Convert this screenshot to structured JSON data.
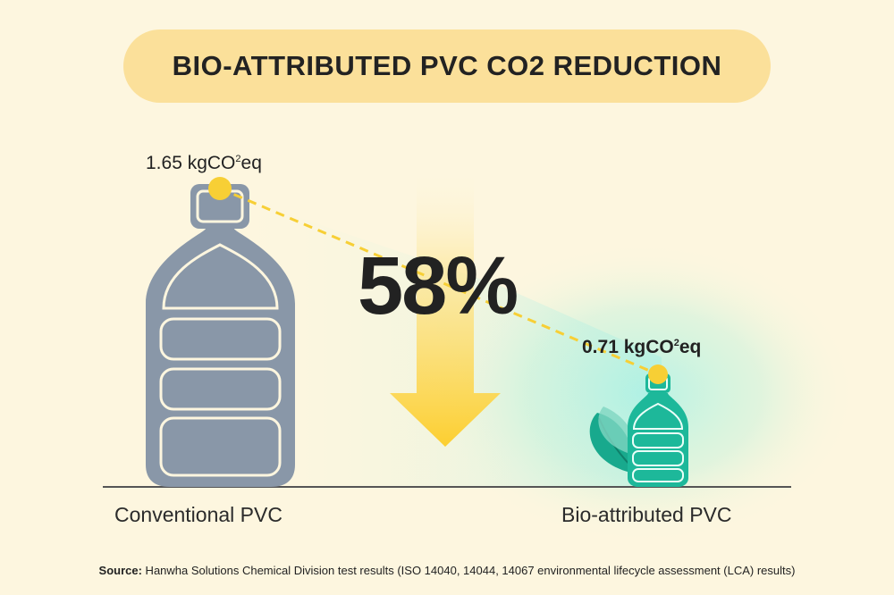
{
  "title": "BIO-ATTRIBUTED PVC CO2 REDUCTION",
  "chart_data": {
    "type": "bar",
    "categories": [
      "Conventional PVC",
      "Bio-attributed PVC"
    ],
    "values": [
      1.65,
      0.71
    ],
    "value_labels": [
      "1.65 kgCO²eq",
      "0.71 kgCO²eq"
    ],
    "unit": "kgCO²eq",
    "reduction_label": "58%",
    "title": "BIO-ATTRIBUTED PVC CO2 REDUCTION"
  },
  "colors": {
    "background": "#fdf6df",
    "title_pill": "#fbe09a",
    "conventional_bottle": "#8997a8",
    "bio_bottle": "#1db89a",
    "arrow": "#fcd13a",
    "marker": "#f7cf35"
  },
  "source": {
    "prefix": "Source:",
    "text": " Hanwha Solutions Chemical Division test results (ISO 14040, 14044, 14067 environmental lifecycle assessment (LCA) results)"
  }
}
